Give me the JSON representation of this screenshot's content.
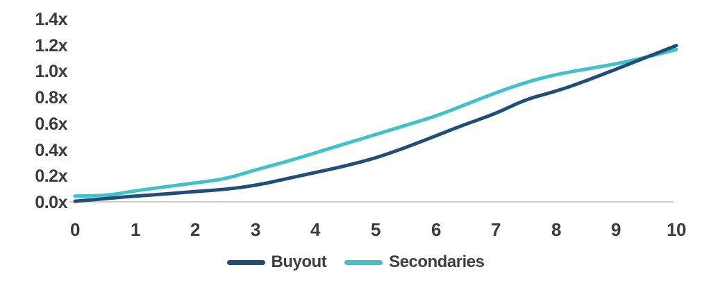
{
  "chart_data": {
    "type": "line",
    "title": "",
    "xlabel": "",
    "ylabel": "",
    "xlim": [
      0,
      10
    ],
    "ylim": [
      0,
      1.4
    ],
    "grid": false,
    "legend_position": "bottom-center",
    "baseline_color": "#d2ccc8",
    "x": [
      0,
      0.5,
      1,
      1.5,
      2,
      2.5,
      3,
      3.5,
      4,
      4.5,
      5,
      5.5,
      6,
      6.5,
      7,
      7.5,
      8,
      8.5,
      9,
      9.5,
      10
    ],
    "series": [
      {
        "name": "Buyout",
        "color": "#1f4e79",
        "values": [
          0.01,
          0.03,
          0.05,
          0.065,
          0.085,
          0.1,
          0.13,
          0.18,
          0.23,
          0.28,
          0.34,
          0.42,
          0.51,
          0.6,
          0.68,
          0.79,
          0.85,
          0.93,
          1.02,
          1.11,
          1.2
        ]
      },
      {
        "name": "Secondaries",
        "color": "#41c1ca",
        "values": [
          0.05,
          0.05,
          0.09,
          0.12,
          0.15,
          0.18,
          0.25,
          0.31,
          0.38,
          0.45,
          0.52,
          0.59,
          0.66,
          0.75,
          0.84,
          0.92,
          0.98,
          1.02,
          1.06,
          1.11,
          1.17
        ]
      }
    ],
    "x_tick_labels": [
      "0",
      "1",
      "2",
      "3",
      "4",
      "5",
      "6",
      "7",
      "8",
      "9",
      "10"
    ],
    "y_tick_labels": [
      "1.4x",
      "1.2x",
      "1.0x",
      "0.8x",
      "0.6x",
      "0.4x",
      "0.2x",
      "0.0x"
    ]
  },
  "legend": {
    "items": [
      {
        "label": "Buyout",
        "color": "#1f4e79"
      },
      {
        "label": "Secondaries",
        "color": "#41c1ca"
      }
    ]
  }
}
